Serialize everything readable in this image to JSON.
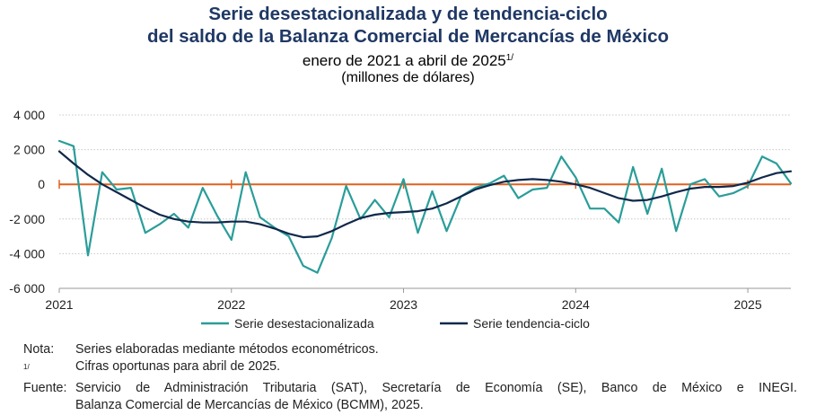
{
  "header": {
    "title_line1": "Serie desestacionalizada y de tendencia-ciclo",
    "title_line2": "del saldo de la Balanza Comercial de Mercancías de México",
    "subtitle": "enero de 2021 a abril de 2025",
    "subtitle_note_mark": "1/",
    "units": "(millones de dólares)"
  },
  "colors": {
    "title": "#1f3864",
    "seasonal_series": "#2a9d99",
    "trend_series": "#10284a",
    "zero_line": "#e0601f",
    "grid": "#c8c8c8"
  },
  "chart_data": {
    "type": "line",
    "y_ticks": [
      "4 000",
      "2 000",
      "0",
      "-2 000",
      "-4 000",
      "-6 000"
    ],
    "y_tick_values": [
      4000,
      2000,
      0,
      -2000,
      -4000,
      -6000
    ],
    "ylim": [
      -6000,
      4000
    ],
    "x_ticks": [
      "2021",
      "2022",
      "2023",
      "2024",
      "2025"
    ],
    "x_start": "2021-01",
    "x_end": "2025-04",
    "grid": "horizontal dotted",
    "legend_position": "bottom",
    "series": [
      {
        "name": "Serie desestacionalizada",
        "values": [
          2500,
          2200,
          -4100,
          700,
          -300,
          -200,
          -2800,
          -2300,
          -1700,
          -2500,
          -200,
          -1800,
          -3200,
          700,
          -1900,
          -2500,
          -3000,
          -4700,
          -5100,
          -3100,
          -100,
          -2000,
          -900,
          -1900,
          300,
          -2800,
          -400,
          -2700,
          -700,
          -200,
          50,
          500,
          -800,
          -300,
          -200,
          1600,
          400,
          -1400,
          -1400,
          -2200,
          1000,
          -1700,
          900,
          -2700,
          0,
          300,
          -700,
          -500,
          -100,
          1600,
          1200,
          50
        ],
        "color": "#2a9d99"
      },
      {
        "name": "Serie tendencia-ciclo",
        "values": [
          1900,
          1200,
          550,
          0,
          -450,
          -900,
          -1350,
          -1750,
          -2000,
          -2150,
          -2200,
          -2200,
          -2150,
          -2150,
          -2300,
          -2550,
          -2850,
          -3050,
          -3000,
          -2700,
          -2300,
          -1950,
          -1750,
          -1650,
          -1600,
          -1550,
          -1400,
          -1100,
          -700,
          -300,
          -50,
          150,
          250,
          300,
          250,
          150,
          0,
          -200,
          -500,
          -800,
          -950,
          -900,
          -700,
          -450,
          -250,
          -150,
          -150,
          -100,
          100,
          400,
          650,
          750
        ],
        "color": "#10284a"
      }
    ]
  },
  "notes": {
    "nota_label": "Nota:",
    "nota_text": "Series elaboradas mediante métodos econométricos.",
    "footnote_label": "1/",
    "footnote_text": "Cifras oportunas para abril de 2025.",
    "fuente_label": "Fuente:",
    "fuente_line1": "Servicio de Administración Tributaria (SAT), Secretaría de Economía (SE), Banco de México e INEGI.",
    "fuente_line2": "Balanza Comercial de Mercancías de México (BCMM), 2025."
  }
}
